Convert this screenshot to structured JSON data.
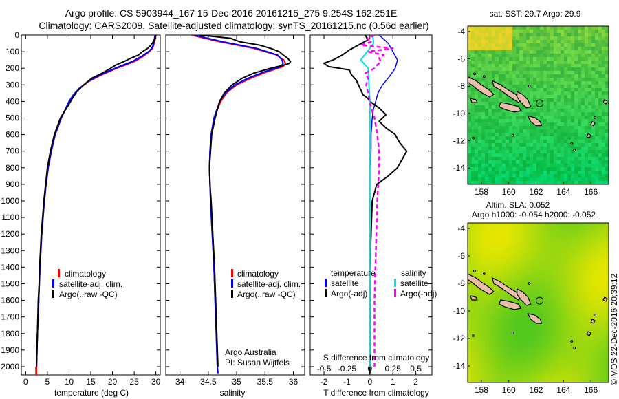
{
  "header": {
    "title_line1": "Argo profile: CS 5903944_167 15-Dec-2016 20161215_275 9.254S 162.251E",
    "title_line2": "Climatology: CARS2009. Satellite-adjusted climatology: synTS_20161215.nc (0.56d earlier)"
  },
  "depth_ticks": [
    0,
    100,
    200,
    300,
    400,
    500,
    600,
    700,
    800,
    900,
    1000,
    1100,
    1200,
    1300,
    1400,
    1500,
    1600,
    1700,
    1800,
    1900,
    2000
  ],
  "colors": {
    "climatology": "#ff0000",
    "satellite": "#0000ff",
    "argo": "#000000",
    "cyan": "#00e0e0",
    "magenta": "#ff00ff"
  },
  "chart_data": [
    {
      "type": "line",
      "xlabel": "temperature (deg C)",
      "xlim": [
        -1,
        31
      ],
      "ylim": [
        2050,
        0
      ],
      "xticks": [
        0,
        5,
        10,
        15,
        20,
        25,
        30
      ],
      "legend": [
        "climatology",
        "satellite-adj. clim.",
        "Argo(..raw -QC)"
      ],
      "series": [
        {
          "name": "climatology",
          "depth": [
            0,
            30,
            60,
            80,
            100,
            130,
            160,
            180,
            200,
            240,
            280,
            320,
            360,
            400,
            500,
            600,
            700,
            800,
            900,
            1000,
            1200,
            1400,
            1600,
            1800,
            2000,
            2040
          ],
          "values": [
            30,
            29.8,
            29.5,
            29.2,
            28.5,
            27.0,
            25.0,
            23.0,
            21.0,
            17.5,
            14.5,
            12.5,
            11.0,
            10.0,
            8.2,
            6.8,
            5.9,
            5.2,
            4.7,
            4.3,
            3.7,
            3.3,
            3.0,
            2.7,
            2.5,
            2.45
          ]
        },
        {
          "name": "satellite-adj. clim.",
          "depth": [
            0,
            30,
            60,
            80,
            100,
            130,
            160,
            180,
            200,
            240,
            280,
            320,
            360,
            400,
            500,
            600,
            700,
            800,
            900,
            1000,
            1200,
            1400,
            1600,
            1800,
            2000,
            2040
          ],
          "values": [
            29.8,
            29.6,
            29.4,
            29.0,
            28.3,
            26.6,
            24.5,
            22.5,
            20.6,
            17.2,
            14.3,
            12.4,
            11.0,
            10.0,
            8.2,
            6.8,
            5.9,
            5.2,
            4.7,
            4.3,
            3.7,
            3.3,
            3.0,
            2.7,
            2.5,
            2.45
          ]
        },
        {
          "name": "Argo(..raw -QC)",
          "depth": [
            0,
            20,
            40,
            60,
            80,
            100,
            120,
            140,
            160,
            180,
            200,
            230,
            260,
            300,
            340,
            380,
            420,
            500,
            600,
            700,
            800,
            900,
            1000,
            1100,
            1200,
            1300,
            1400,
            1500,
            1600,
            1700,
            1800,
            1900,
            2000
          ],
          "values": [
            30,
            29.8,
            29.4,
            28.9,
            28.1,
            26.9,
            26.0,
            24.2,
            22.6,
            20.8,
            19.6,
            17.6,
            15.2,
            13.4,
            11.8,
            10.8,
            9.9,
            8.0,
            6.6,
            5.7,
            5.0,
            4.6,
            4.2,
            3.9,
            3.6,
            3.4,
            3.2,
            3.1,
            2.9,
            2.8,
            2.7,
            2.6,
            2.5
          ]
        }
      ]
    },
    {
      "type": "line",
      "xlabel": "salinity",
      "xlim": [
        33.75,
        36.2
      ],
      "ylim": [
        2050,
        0
      ],
      "xticks": [
        34,
        34.5,
        35,
        35.5,
        36
      ],
      "legend": [
        "climatology",
        "satellite-adj. clim.",
        "Argo(..raw -QC)"
      ],
      "annotation": [
        "Argo Australia",
        "PI: Susan Wijffels"
      ],
      "series": [
        {
          "name": "climatology",
          "depth": [
            0,
            40,
            80,
            120,
            150,
            170,
            190,
            220,
            260,
            300,
            350,
            400,
            450,
            500,
            600,
            700,
            800,
            900,
            1000,
            1200,
            1400,
            1600,
            1800,
            2000,
            2040
          ],
          "values": [
            34.2,
            34.7,
            35.3,
            35.7,
            35.83,
            35.86,
            35.82,
            35.55,
            35.25,
            35.0,
            34.82,
            34.72,
            34.66,
            34.6,
            34.55,
            34.53,
            34.52,
            34.53,
            34.54,
            34.57,
            34.6,
            34.62,
            34.64,
            34.66,
            34.67
          ]
        },
        {
          "name": "satellite-adj. clim.",
          "depth": [
            0,
            40,
            80,
            120,
            150,
            170,
            190,
            220,
            260,
            300,
            350,
            400,
            450,
            500,
            600,
            700,
            800,
            900,
            1000,
            1200,
            1400,
            1600,
            1800,
            2000,
            2040
          ],
          "values": [
            34.25,
            34.75,
            35.35,
            35.72,
            35.8,
            35.82,
            35.78,
            35.5,
            35.2,
            34.97,
            34.8,
            34.7,
            34.65,
            34.6,
            34.55,
            34.53,
            34.52,
            34.53,
            34.54,
            34.57,
            34.6,
            34.62,
            34.64,
            34.66,
            34.67
          ]
        },
        {
          "name": "Argo(..raw -QC)",
          "depth": [
            0,
            20,
            40,
            60,
            80,
            100,
            120,
            140,
            160,
            170,
            180,
            200,
            230,
            260,
            300,
            350,
            400,
            450,
            500,
            600,
            700,
            800,
            900,
            1000,
            1200,
            1400,
            1600,
            1800,
            2000
          ],
          "values": [
            34.35,
            34.9,
            35.05,
            35.4,
            35.6,
            35.75,
            35.82,
            35.9,
            35.95,
            35.93,
            35.85,
            35.6,
            35.3,
            35.1,
            34.92,
            34.78,
            34.7,
            34.66,
            34.62,
            34.56,
            34.54,
            34.52,
            34.53,
            34.55,
            34.58,
            34.61,
            34.63,
            34.65,
            34.67
          ]
        }
      ]
    },
    {
      "type": "line",
      "xlabel": "T difference from climatology",
      "x2label": "S difference from climatology",
      "xlim": [
        -2.6,
        2.7
      ],
      "ylim": [
        2050,
        0
      ],
      "xticks": [
        -2,
        -1,
        0,
        1,
        2
      ],
      "x2ticks": [
        "-0.5",
        "-0.25",
        "0",
        "0.25",
        "0.5"
      ],
      "legend_temperature": [
        "temperature",
        "satellite",
        "Argo(-adj)"
      ],
      "legend_salinity": [
        "salinity",
        "satellite",
        "Argo(-adj)"
      ],
      "series": [
        {
          "name": "temperature satellite",
          "depth": [
            0,
            50,
            100,
            150,
            200,
            250,
            300,
            350,
            400,
            450,
            500,
            600,
            700,
            800,
            900,
            1000,
            1100
          ],
          "values": [
            0.4,
            0.8,
            1.0,
            1.2,
            1.1,
            0.85,
            0.55,
            0.35,
            0.25,
            0.15,
            0.1,
            0.05,
            0.05,
            0.0,
            0.0,
            0.0,
            0.0
          ]
        },
        {
          "name": "temperature Argo(-adj)",
          "depth": [
            0,
            30,
            60,
            90,
            120,
            150,
            170,
            190,
            210,
            240,
            270,
            300,
            330,
            360,
            380,
            400,
            440,
            480,
            520,
            560,
            600,
            650,
            700,
            750,
            800,
            850,
            900,
            1000,
            1200,
            1400,
            1600,
            1800,
            2000,
            2040
          ],
          "values": [
            -0.2,
            -0.1,
            -0.5,
            -0.9,
            -1.2,
            -1.6,
            -2.0,
            -1.8,
            -0.9,
            -0.8,
            -0.6,
            -0.5,
            -0.4,
            -0.3,
            -0.1,
            0.0,
            0.4,
            0.7,
            0.4,
            0.7,
            1.1,
            1.3,
            1.6,
            1.4,
            1.2,
            0.8,
            0.3,
            0.1,
            0.05,
            0.0,
            0.0,
            0.0,
            0.0,
            0.0
          ]
        },
        {
          "name": "salinity satellite",
          "depth": [
            0,
            50,
            100,
            150,
            200,
            300,
            400,
            600,
            800,
            1000,
            1200,
            1400,
            1600,
            1800,
            2000
          ],
          "values": [
            0.03,
            0.04,
            -0.03,
            -0.1,
            -0.02,
            -0.01,
            0.0,
            0.0,
            0.0,
            0.0,
            0.0,
            0.0,
            0.0,
            0.0,
            0.0
          ]
        },
        {
          "name": "salinity Argo(-adj)",
          "depth": [
            0,
            20,
            40,
            60,
            80,
            100,
            120,
            140,
            160,
            180,
            200,
            230,
            260,
            300,
            350,
            400,
            450,
            500,
            600,
            700,
            800,
            900,
            1000,
            1200,
            1400,
            1600,
            1800,
            2000
          ],
          "values": [
            0.05,
            -0.03,
            0.02,
            -0.1,
            0.25,
            -0.02,
            0.15,
            0.1,
            0.12,
            0.08,
            0.05,
            -0.05,
            -0.02,
            -0.04,
            -0.02,
            0.0,
            0.02,
            0.05,
            0.08,
            0.1,
            0.1,
            0.09,
            0.08,
            0.07,
            0.06,
            0.05,
            0.05,
            0.05
          ]
        }
      ]
    },
    {
      "type": "heatmap",
      "title": "sat. SST: 29.7  Argo: 29.9",
      "xlim": [
        157,
        167.3
      ],
      "ylim": [
        -15.2,
        -3.6
      ],
      "xticks": [
        158,
        160,
        162,
        164,
        166
      ],
      "yticks": [
        -4,
        -6,
        -8,
        -10,
        -12,
        -14
      ],
      "marker": {
        "lon": 162.251,
        "lat": -9.254
      }
    },
    {
      "type": "heatmap",
      "title_line1": "Altim. SLA: 0.052",
      "title_line2": "Argo h1000: -0.054 h2000: -0.052",
      "xlim": [
        157,
        167.3
      ],
      "ylim": [
        -15.2,
        -3.6
      ],
      "xticks": [
        158,
        160,
        162,
        164,
        166
      ],
      "yticks": [
        -4,
        -6,
        -8,
        -10,
        -12,
        -14
      ],
      "marker": {
        "lon": 162.251,
        "lat": -9.254
      }
    }
  ],
  "watermark": "©IMOS 22-Dec-2016 20:39:12"
}
